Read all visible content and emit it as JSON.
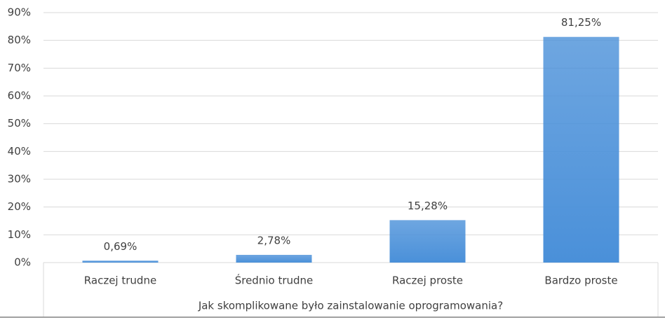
{
  "chart_data": {
    "type": "bar",
    "x_label": "Jak skomplikowane było zainstalowanie oprogramowania?",
    "categories": [
      "Raczej trudne",
      "Średnio trudne",
      "Raczej proste",
      "Bardzo proste"
    ],
    "values": [
      0.69,
      2.78,
      15.28,
      81.25
    ],
    "value_labels": [
      "0,69%",
      "2,78%",
      "15,28%",
      "81,25%"
    ],
    "color": "#4a90d9",
    "ylim": [
      0,
      90
    ],
    "yticks": [
      {
        "value": 0,
        "label": "0%"
      },
      {
        "value": 10,
        "label": "10%"
      },
      {
        "value": 20,
        "label": "20%"
      },
      {
        "value": 30,
        "label": "30%"
      },
      {
        "value": 40,
        "label": "40%"
      },
      {
        "value": 50,
        "label": "50%"
      },
      {
        "value": 60,
        "label": "60%"
      },
      {
        "value": 70,
        "label": "70%"
      },
      {
        "value": 80,
        "label": "80%"
      },
      {
        "value": 90,
        "label": "90%"
      }
    ],
    "grid": true
  }
}
